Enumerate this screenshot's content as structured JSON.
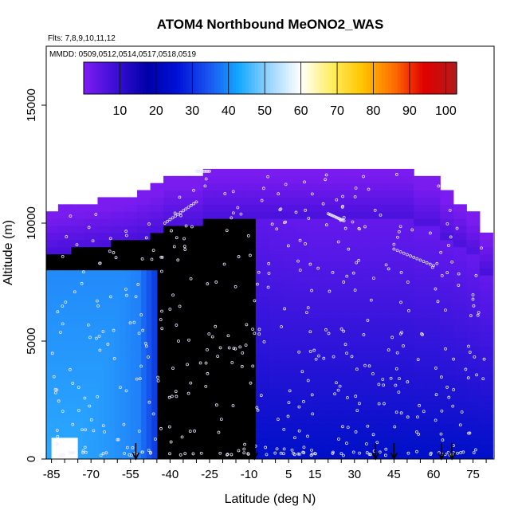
{
  "chart_data": {
    "type": "heatmap",
    "title": "ATOM4 Northbound MeONO2_WAS",
    "flights_label": "Flts: 7,8,9,10,11,12",
    "dates_label": "MMDD: 0509,0512,0514,0517,0518,0519",
    "xlabel": "Latitude (deg N)",
    "ylabel": "Altitude (m)",
    "xlim": [
      -87,
      83
    ],
    "ylim": [
      0,
      17500
    ],
    "x_tick_labels": [
      "-85",
      "-70",
      "-55",
      "-40",
      "-25",
      "-10",
      "5",
      "15",
      "30",
      "45",
      "60",
      "75"
    ],
    "x_tick_values": [
      -85,
      -70,
      -55,
      -40,
      -25,
      -10,
      5,
      15,
      30,
      45,
      60,
      75
    ],
    "y_tick_labels": [
      "0",
      "5000",
      "10000",
      "15000"
    ],
    "y_tick_values": [
      0,
      5000,
      10000,
      15000
    ],
    "colorbar": {
      "min": 0,
      "max": 103,
      "tick_labels": [
        "10",
        "20",
        "30",
        "40",
        "50",
        "60",
        "70",
        "80",
        "90",
        "100"
      ],
      "tick_values": [
        10,
        20,
        30,
        40,
        50,
        60,
        70,
        80,
        90,
        100
      ],
      "colors": [
        "#7a1cf0",
        "#3c0ed6",
        "#0000a8",
        "#0010d8",
        "#1a55f0",
        "#14a8ff",
        "#9dd6ff",
        "#ffffff",
        "#ffee60",
        "#ffc400",
        "#ff6e00",
        "#e00000",
        "#b51a1a"
      ]
    },
    "profile_arrows_lat": [
      -53,
      -8,
      38,
      45,
      63,
      67
    ],
    "columns": [
      {
        "lat": -85,
        "top": 10500,
        "low": 0.6,
        "mid": 0.9
      },
      {
        "lat": -80,
        "top": 10600,
        "low": 0.6,
        "mid": 0.9
      },
      {
        "lat": -75,
        "top": 10700,
        "low": 0.6,
        "mid": 0.9
      },
      {
        "lat": -70,
        "top": 10800,
        "low": 0.6,
        "mid": 0.85
      },
      {
        "lat": -65,
        "top": 10900,
        "low": 0.62,
        "mid": 0.8
      },
      {
        "lat": -60,
        "top": 11000,
        "low": 0.62,
        "mid": 0.75
      },
      {
        "lat": -55,
        "top": 11100,
        "low": 0.65,
        "mid": 0.6
      },
      {
        "lat": -50,
        "top": 11300,
        "low": 0.8,
        "mid": 0.4
      },
      {
        "lat": -45,
        "top": 11500,
        "low": 0.9,
        "mid": 0.3
      },
      {
        "lat": -40,
        "top": 11900,
        "low": 0.92,
        "mid": 0.25
      },
      {
        "lat": -35,
        "top": 11900,
        "low": 0.95,
        "mid": 0.2
      },
      {
        "lat": -30,
        "top": 11900,
        "low": 0.95,
        "mid": 0.2
      },
      {
        "lat": -25,
        "top": 12300,
        "low": 0.97,
        "mid": 0.18
      },
      {
        "lat": -20,
        "top": 12300,
        "low": 0.98,
        "mid": 0.16
      },
      {
        "lat": -15,
        "top": 12300,
        "low": 0.98,
        "mid": 0.14
      },
      {
        "lat": -10,
        "top": 12300,
        "low": 0.98,
        "mid": 0.12
      },
      {
        "lat": -5,
        "top": 12300,
        "low": 1.0,
        "mid": 0.1
      },
      {
        "lat": 0,
        "top": 12300,
        "low": 1.0,
        "mid": 0.06
      },
      {
        "lat": 5,
        "top": 12300,
        "low": 1.0,
        "mid": 0.04
      },
      {
        "lat": 10,
        "top": 12300,
        "low": 1.0,
        "mid": 0.03
      },
      {
        "lat": 15,
        "top": 12300,
        "low": 1.0,
        "mid": 0.02
      },
      {
        "lat": 20,
        "top": 12300,
        "low": 1.0,
        "mid": 0.02
      },
      {
        "lat": 25,
        "top": 12300,
        "low": 1.0,
        "mid": 0.02
      },
      {
        "lat": 30,
        "top": 12300,
        "low": 1.0,
        "mid": 0.02
      },
      {
        "lat": 35,
        "top": 12300,
        "low": 1.0,
        "mid": 0.02
      },
      {
        "lat": 40,
        "top": 12300,
        "low": 1.0,
        "mid": 0.02
      },
      {
        "lat": 45,
        "top": 12300,
        "low": 1.0,
        "mid": 0.02
      },
      {
        "lat": 50,
        "top": 12300,
        "low": 1.0,
        "mid": 0.02
      },
      {
        "lat": 55,
        "top": 11800,
        "low": 1.0,
        "mid": 0.02
      },
      {
        "lat": 60,
        "top": 11800,
        "low": 1.0,
        "mid": 0.02
      },
      {
        "lat": 65,
        "top": 11200,
        "low": 1.0,
        "mid": 0.02
      },
      {
        "lat": 70,
        "top": 10800,
        "low": 1.0,
        "mid": 0.02
      },
      {
        "lat": 75,
        "top": 10300,
        "low": 1.0,
        "mid": 0.02
      },
      {
        "lat": 80,
        "top": 9500,
        "low": 1.0,
        "mid": 0.02
      }
    ],
    "light_blue_region": {
      "from_lat": -87,
      "to_lat": -45,
      "top_alt": 8000
    },
    "missing_lowest_alt": {
      "from_lat": -85,
      "to_lat": -75,
      "top_alt": 900
    }
  }
}
